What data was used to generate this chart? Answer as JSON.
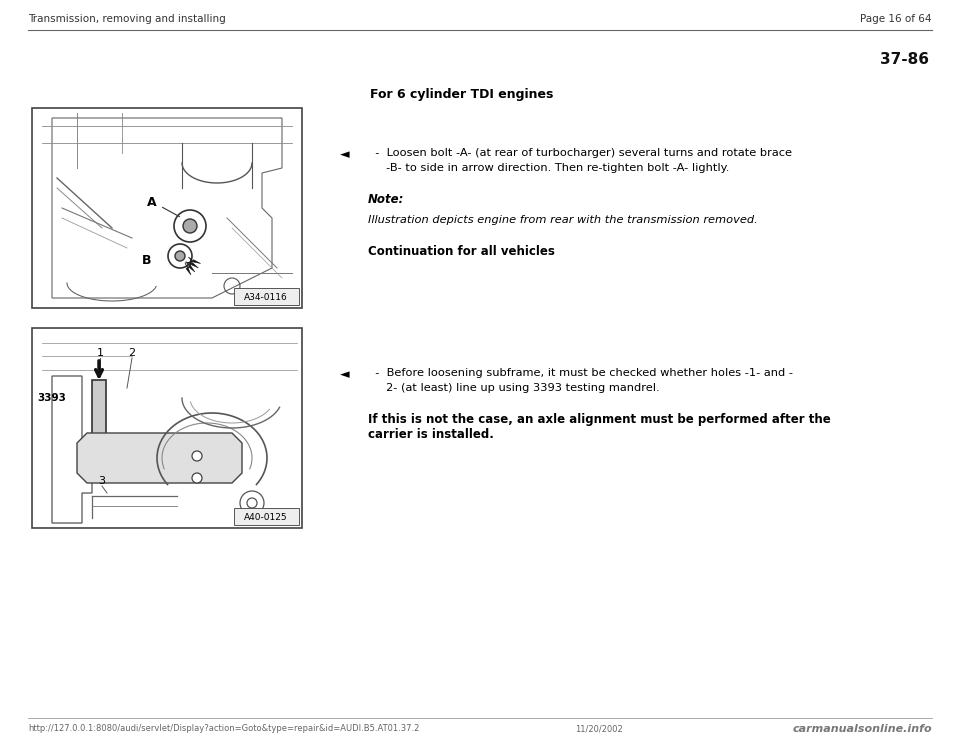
{
  "bg_color": "#ffffff",
  "header_left": "Transmission, removing and installing",
  "header_right": "Page 16 of 64",
  "page_num": "37-86",
  "footer_url": "http://127.0.0.1:8080/audi/servlet/Display?action=Goto&type=repair&id=AUDI.B5.AT01.37.2",
  "footer_date": "11/20/2002",
  "footer_brand": "carmanualsonline.info",
  "section_title": "For 6 cylinder TDI engines",
  "arrow_symbol": "◄",
  "block1_line1": "  -  Loosen bolt -A- (at rear of turbocharger) several turns and rotate brace",
  "block1_line2": "     -B- to side in arrow direction. Then re-tighten bolt -A- lightly.",
  "block1_note_label": "Note:",
  "block1_note_italic": "Illustration depicts engine from rear with the transmission removed.",
  "block1_continuation": "Continuation for all vehicles",
  "block2_line1": "  -  Before loosening subframe, it must be checked whether holes -1- and -",
  "block2_line2": "     2- (at least) line up using 3393 testing mandrel.",
  "block2_bold1": "If this is not the case, an axle alignment must be performed after the",
  "block2_bold2": "carrier is installed.",
  "img1_label": "A34-0116",
  "img2_label": "A40-0125",
  "img2_side_label": "3393"
}
